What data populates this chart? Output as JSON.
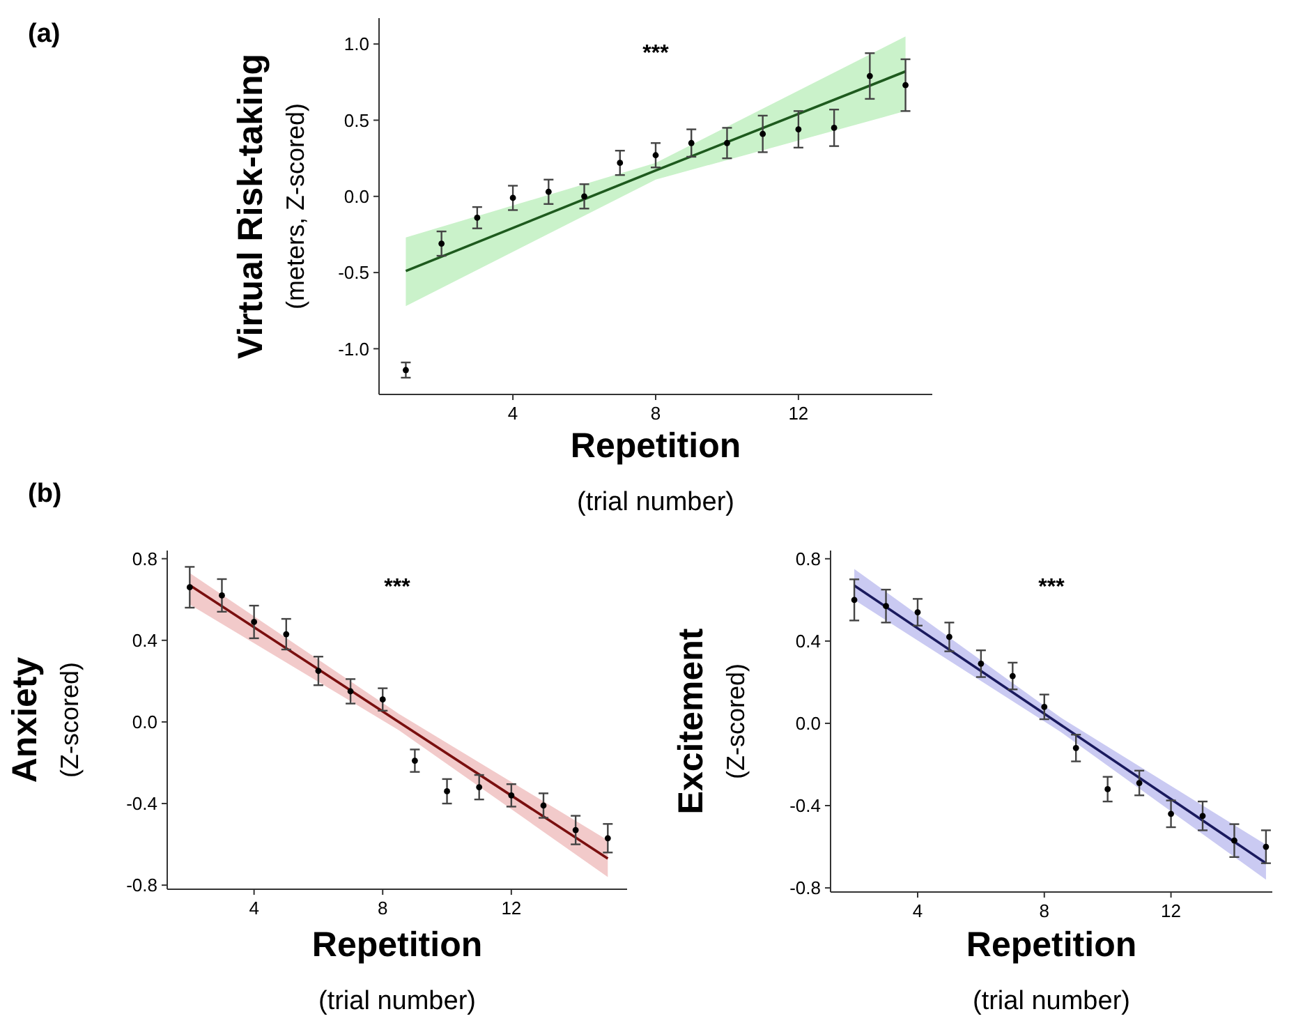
{
  "chart_data": [
    {
      "type": "scatter",
      "annotations": [
        "(a)",
        "***"
      ],
      "ylabel": "Virtual Risk-taking\n(meters, Z-scored)",
      "xlabel": "Repetition\n(trial number)",
      "xlim": [
        0.25,
        15.75
      ],
      "xticks": [
        4,
        8,
        12
      ],
      "ylim": [
        -1.3,
        1.17
      ],
      "yticks": [
        {
          "value": -1,
          "label": "-1.0"
        },
        {
          "value": -0.5,
          "label": "-0.5"
        },
        {
          "value": 0,
          "label": "0.0"
        },
        {
          "value": 0.5,
          "label": "0.5"
        },
        {
          "value": 1,
          "label": "1.0"
        }
      ],
      "series": [
        {
          "marker": "circle",
          "color": "#000000",
          "x": [
            1,
            2,
            3,
            4,
            5,
            6,
            7,
            8,
            9,
            10,
            11,
            12,
            13,
            14,
            15
          ],
          "values": [
            -1.14,
            -0.31,
            -0.14,
            -0.01,
            0.03,
            0.0,
            0.22,
            0.27,
            0.35,
            0.35,
            0.41,
            0.44,
            0.45,
            0.79,
            0.73
          ],
          "errors": [
            0.05,
            0.08,
            0.07,
            0.08,
            0.08,
            0.08,
            0.08,
            0.08,
            0.09,
            0.1,
            0.12,
            0.12,
            0.12,
            0.15,
            0.17
          ]
        },
        {
          "type": "line",
          "color": "#1e5a1e",
          "x": [
            1,
            8,
            15
          ],
          "values": [
            -0.49,
            0.17,
            0.82
          ],
          "lower": [
            -0.72,
            0.11,
            0.56
          ],
          "upper": [
            -0.27,
            0.22,
            1.05
          ]
        }
      ]
    },
    {
      "type": "scatter",
      "annotations": [
        "(b)",
        "***"
      ],
      "ylabel": "Anxiety\n(Z-scored)",
      "xlabel": "Repetition\n(trial number)",
      "xlim": [
        1.3,
        15.6
      ],
      "xticks": [
        4,
        8,
        12
      ],
      "ylim": [
        -0.82,
        0.84
      ],
      "yticks": [
        {
          "value": -0.8,
          "label": "-0.8"
        },
        {
          "value": -0.4,
          "label": "-0.4"
        },
        {
          "value": 0,
          "label": "0.0"
        },
        {
          "value": 0.4,
          "label": "0.4"
        },
        {
          "value": 0.8,
          "label": "0.8"
        }
      ],
      "series": [
        {
          "marker": "circle",
          "color": "#000000",
          "x": [
            2,
            3,
            4,
            5,
            6,
            7,
            8,
            9,
            10,
            11,
            12,
            13,
            14,
            15
          ],
          "values": [
            0.66,
            0.62,
            0.49,
            0.43,
            0.25,
            0.15,
            0.11,
            -0.19,
            -0.34,
            -0.32,
            -0.36,
            -0.41,
            -0.53,
            -0.57
          ],
          "errors": [
            0.1,
            0.08,
            0.08,
            0.075,
            0.07,
            0.06,
            0.055,
            0.055,
            0.06,
            0.06,
            0.055,
            0.06,
            0.07,
            0.07
          ]
        },
        {
          "type": "line",
          "color": "#7a0f0f",
          "x": [
            2,
            8.5,
            15
          ],
          "values": [
            0.67,
            0,
            -0.67
          ],
          "lower": [
            0.575,
            -0.04,
            -0.76
          ],
          "upper": [
            0.73,
            0.04,
            -0.58
          ]
        }
      ]
    },
    {
      "type": "scatter",
      "annotations": [
        "***"
      ],
      "ylabel": "Excitement\n(Z-scored)",
      "xlabel": "Repetition\n(trial number)",
      "xlim": [
        1.25,
        15.2
      ],
      "xticks": [
        4,
        8,
        12
      ],
      "ylim": [
        -0.82,
        0.84
      ],
      "yticks": [
        {
          "value": -0.8,
          "label": "-0.8"
        },
        {
          "value": -0.4,
          "label": "-0.4"
        },
        {
          "value": 0,
          "label": "0.0"
        },
        {
          "value": 0.4,
          "label": "0.4"
        },
        {
          "value": 0.8,
          "label": "0.8"
        }
      ],
      "series": [
        {
          "marker": "circle",
          "color": "#000000",
          "x": [
            2,
            3,
            4,
            5,
            6,
            7,
            8,
            9,
            10,
            11,
            12,
            13,
            14,
            15
          ],
          "values": [
            0.6,
            0.57,
            0.54,
            0.42,
            0.29,
            0.23,
            0.08,
            -0.12,
            -0.32,
            -0.29,
            -0.44,
            -0.45,
            -0.57,
            -0.6
          ],
          "errors": [
            0.1,
            0.08,
            0.065,
            0.07,
            0.065,
            0.065,
            0.06,
            0.065,
            0.06,
            0.06,
            0.065,
            0.07,
            0.08,
            0.08
          ]
        },
        {
          "type": "line",
          "color": "#1a1a5e",
          "x": [
            2,
            8.5,
            15
          ],
          "values": [
            0.67,
            -0.005,
            -0.68
          ],
          "lower": [
            0.6,
            -0.04,
            -0.76
          ],
          "upper": [
            0.75,
            0.03,
            -0.59
          ]
        }
      ]
    }
  ]
}
